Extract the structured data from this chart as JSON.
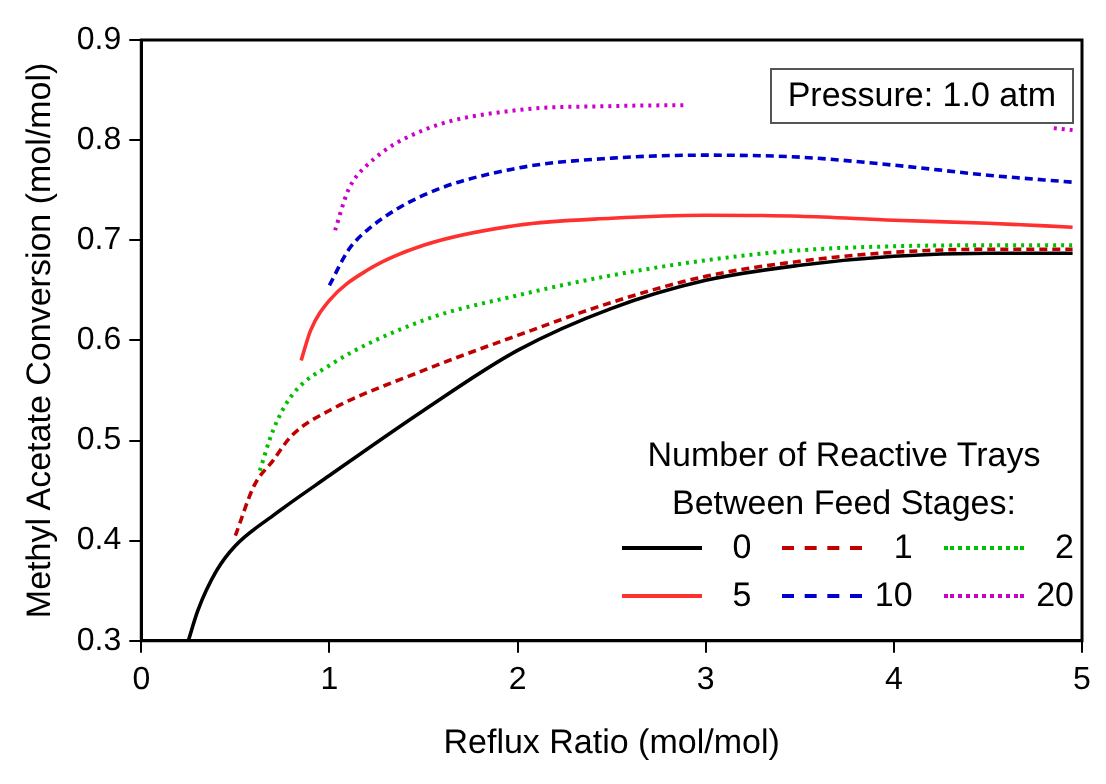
{
  "chart_data": {
    "type": "line",
    "xlabel": "Reflux Ratio (mol/mol)",
    "ylabel": "Methyl Acetate Conversion (mol/mol)",
    "legend_title": "Number of Reactive Trays Between Feed Stages:",
    "annotations": [
      "Pressure: 1.0 atm"
    ],
    "xlim": [
      0,
      5
    ],
    "ylim": [
      0.3,
      0.9
    ],
    "xticks": [
      0,
      1,
      2,
      3,
      4,
      5
    ],
    "yticks": [
      0.3,
      0.4,
      0.5,
      0.6,
      0.7,
      0.8,
      0.9
    ],
    "grid": false,
    "legend": "bottom right",
    "marker": "none",
    "series": [
      {
        "name": "0",
        "color": "#000000",
        "line_style": "solid",
        "x": [
          0.25,
          0.3,
          0.4,
          0.5,
          0.7,
          1.0,
          1.5,
          2.0,
          2.5,
          3.0,
          3.5,
          4.0,
          4.5,
          4.95
        ],
        "values": [
          0.3,
          0.33,
          0.37,
          0.395,
          0.425,
          0.465,
          0.53,
          0.59,
          0.632,
          0.66,
          0.675,
          0.684,
          0.687,
          0.687
        ]
      },
      {
        "name": "1",
        "color": "#c00000",
        "line_style": "dashed",
        "x": [
          0.5,
          0.6,
          0.7,
          0.8,
          1.0,
          1.5,
          2.0,
          2.5,
          3.0,
          3.5,
          4.0,
          4.5,
          4.95
        ],
        "values": [
          0.405,
          0.455,
          0.48,
          0.505,
          0.53,
          0.57,
          0.605,
          0.638,
          0.664,
          0.679,
          0.688,
          0.691,
          0.691
        ]
      },
      {
        "name": "2",
        "color": "#00c000",
        "line_style": "dotted",
        "x": [
          0.63,
          0.7,
          0.8,
          1.0,
          1.5,
          2.0,
          2.5,
          3.0,
          3.5,
          4.0,
          4.5,
          4.95
        ],
        "values": [
          0.47,
          0.51,
          0.545,
          0.575,
          0.62,
          0.645,
          0.665,
          0.68,
          0.69,
          0.694,
          0.695,
          0.695
        ]
      },
      {
        "name": "5",
        "color": "#ff3030",
        "line_style": "solid",
        "x": [
          0.85,
          0.9,
          1.0,
          1.2,
          1.5,
          2.0,
          2.5,
          3.0,
          3.5,
          4.0,
          4.5,
          4.95
        ],
        "values": [
          0.58,
          0.61,
          0.64,
          0.67,
          0.695,
          0.715,
          0.722,
          0.725,
          0.724,
          0.72,
          0.717,
          0.713
        ]
      },
      {
        "name": "10",
        "color": "#0000cc",
        "line_style": "dashed",
        "x": [
          1.0,
          1.1,
          1.2,
          1.5,
          2.0,
          2.5,
          3.0,
          3.5,
          4.0,
          4.5,
          4.95
        ],
        "values": [
          0.655,
          0.69,
          0.71,
          0.745,
          0.772,
          0.782,
          0.785,
          0.783,
          0.775,
          0.765,
          0.758
        ]
      },
      {
        "name": "20",
        "color": "#cc00cc",
        "line_style": "dotted",
        "x": [
          1.03,
          1.1,
          1.2,
          1.5,
          2.0,
          2.5,
          2.9,
          3.0,
          3.5,
          4.0,
          4.5,
          4.85,
          4.95
        ],
        "values": [
          0.71,
          0.75,
          0.775,
          0.81,
          0.83,
          0.834,
          0.835,
          null,
          null,
          null,
          null,
          0.812,
          0.81
        ]
      }
    ]
  }
}
